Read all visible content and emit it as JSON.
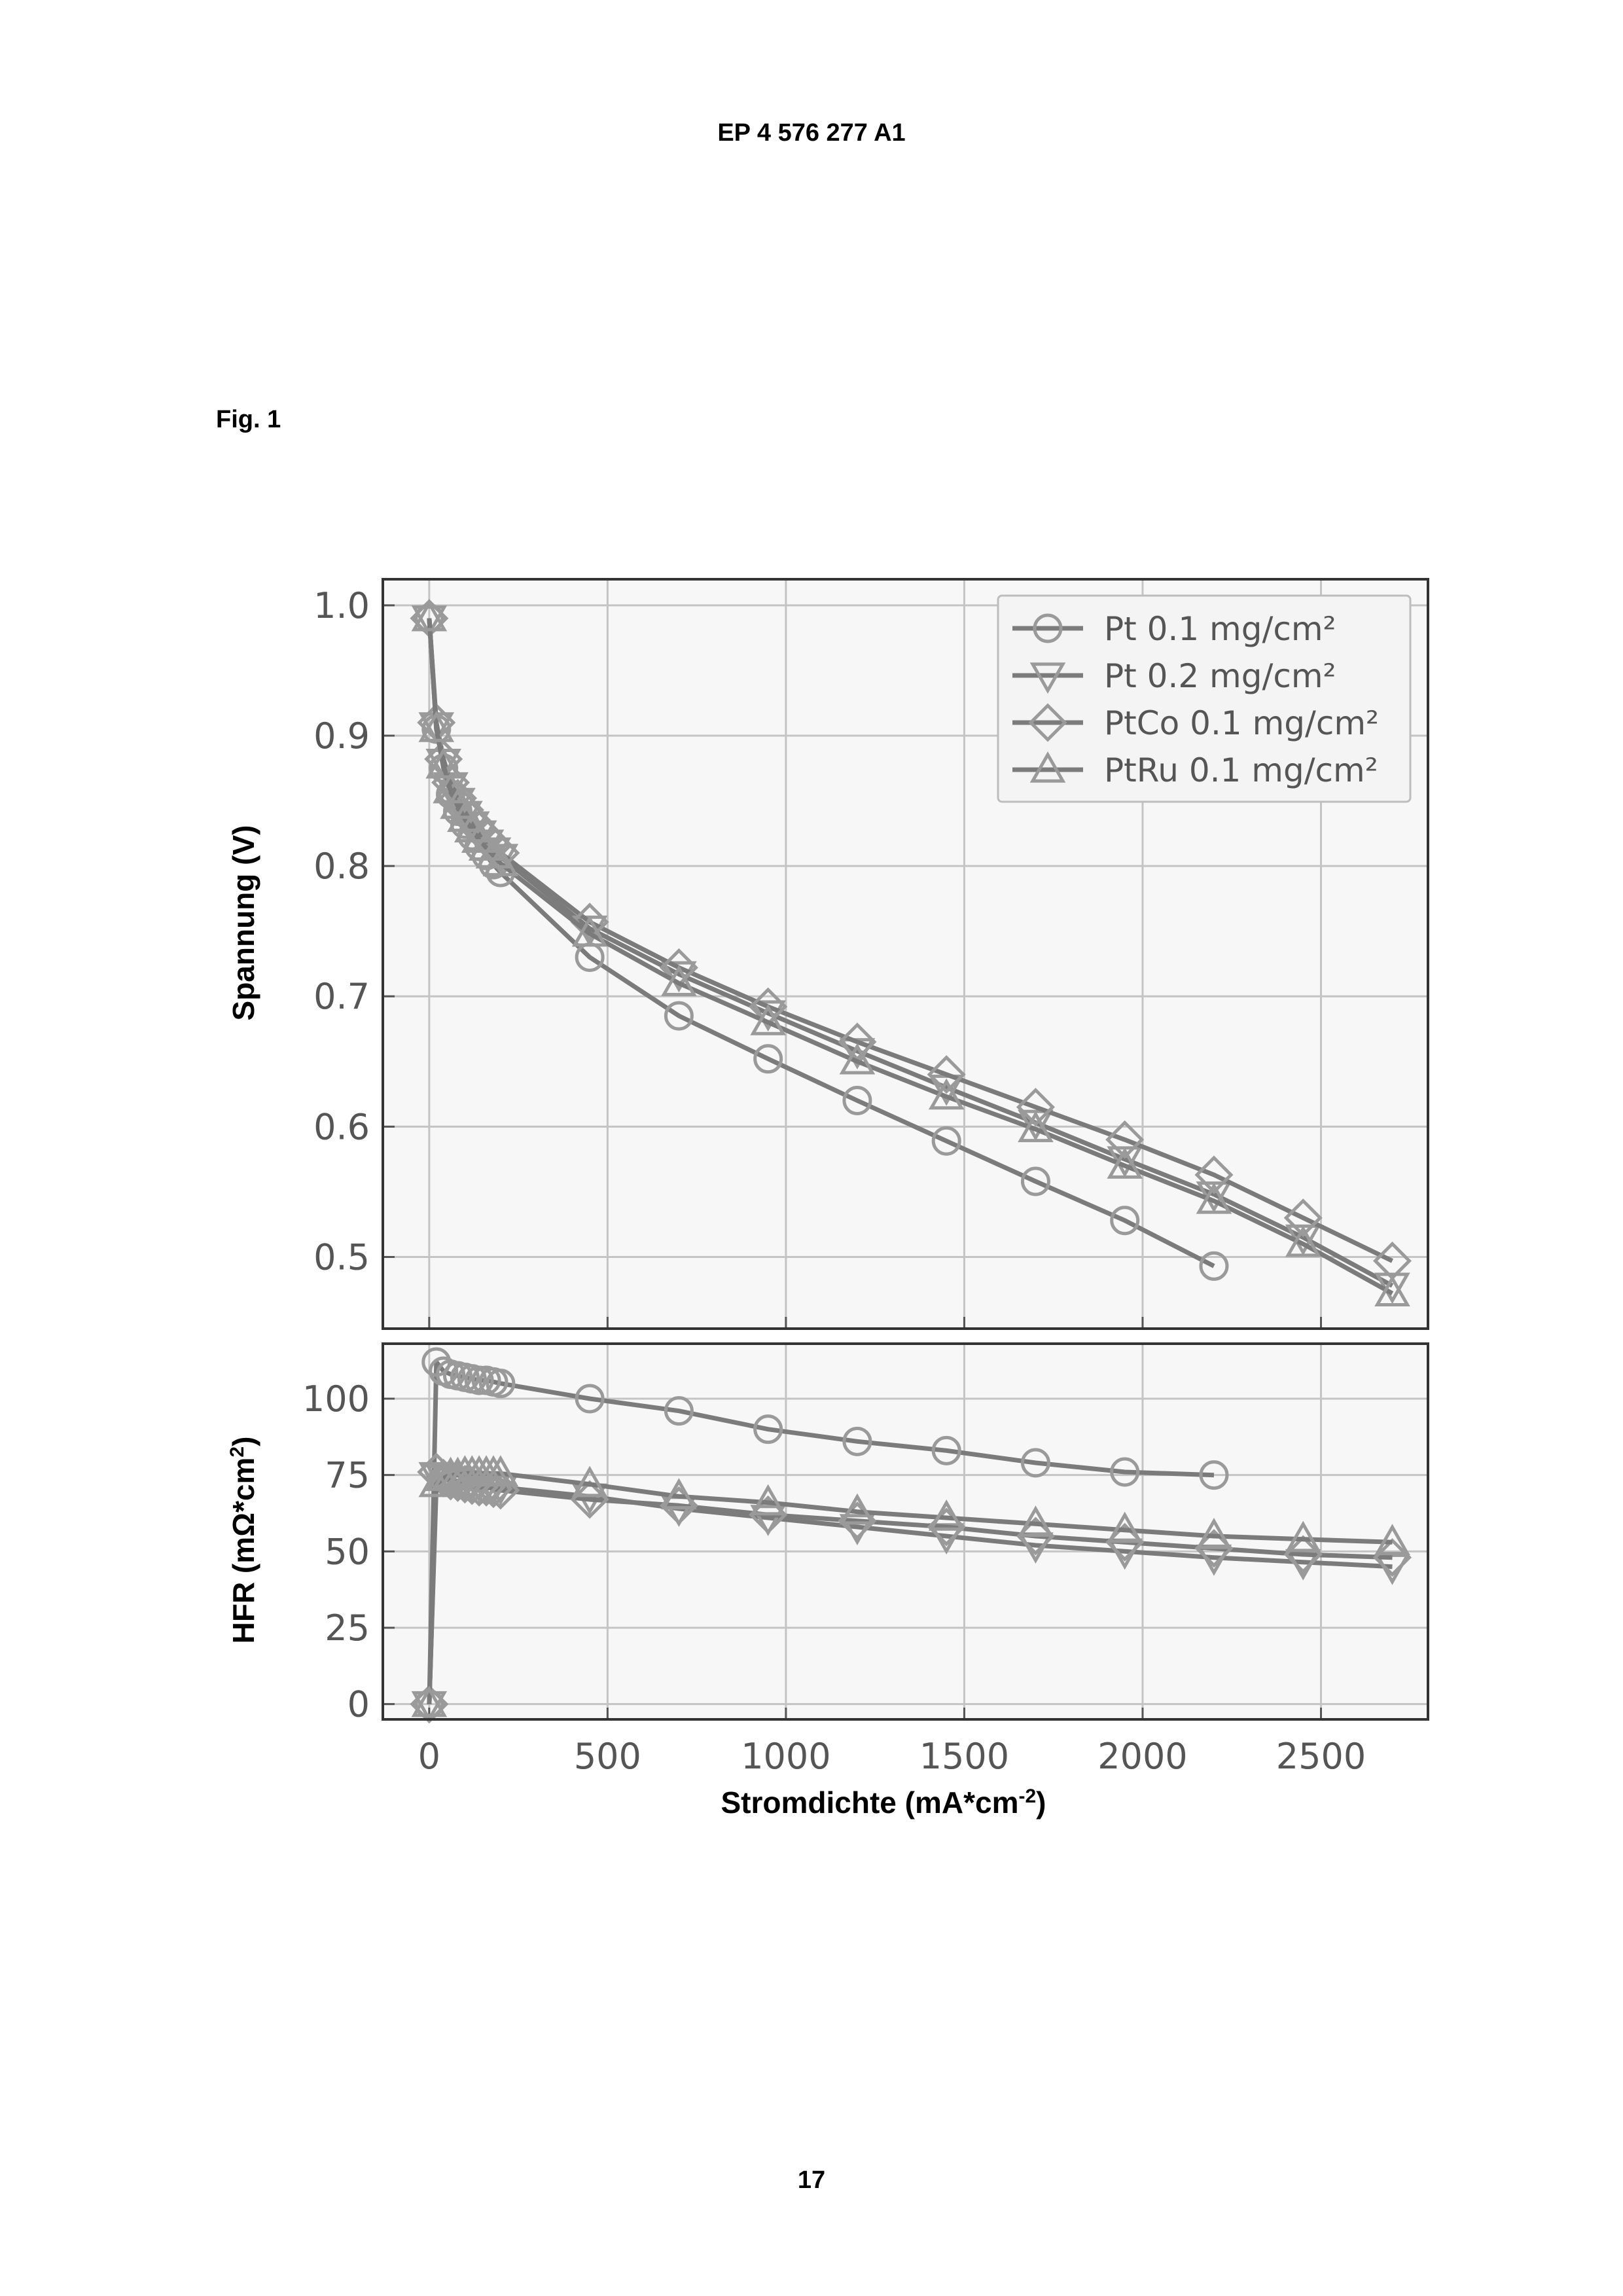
{
  "page": {
    "header": "EP 4 576 277 A1",
    "figure_label": "Fig. 1",
    "page_number": "17"
  },
  "chart_data": [
    {
      "type": "line",
      "panel": "top",
      "ylabel": "Spannung (V)",
      "xlim": [
        -130,
        2800
      ],
      "ylim": [
        0.445,
        1.02
      ],
      "xticks": [
        0,
        500,
        1000,
        1500,
        2000,
        2500
      ],
      "yticks": [
        0.5,
        0.6,
        0.7,
        0.8,
        0.9,
        1.0
      ],
      "ytick_labels": [
        "0.5",
        "0.6",
        "0.7",
        "0.8",
        "0.9",
        "1.0"
      ],
      "grid": true,
      "legend": "top-right",
      "series": [
        {
          "name": "Pt 0.1 mg/cm²",
          "marker": "circle",
          "x": [
            0,
            20,
            40,
            60,
            80,
            100,
            120,
            140,
            160,
            180,
            200,
            450,
            700,
            950,
            1200,
            1450,
            1700,
            1950,
            2200
          ],
          "y": [
            0.99,
            0.905,
            0.875,
            0.855,
            0.842,
            0.832,
            0.823,
            0.815,
            0.808,
            0.801,
            0.795,
            0.73,
            0.685,
            0.652,
            0.62,
            0.589,
            0.558,
            0.528,
            0.493
          ]
        },
        {
          "name": "Pt 0.2 mg/cm²",
          "marker": "triangle-down",
          "x": [
            0,
            20,
            40,
            60,
            80,
            100,
            120,
            140,
            160,
            180,
            200,
            450,
            700,
            950,
            1200,
            1450,
            1700,
            1950,
            2200,
            2450,
            2700
          ],
          "y": [
            0.99,
            0.908,
            0.88,
            0.862,
            0.85,
            0.84,
            0.832,
            0.825,
            0.818,
            0.812,
            0.807,
            0.752,
            0.717,
            0.687,
            0.658,
            0.63,
            0.603,
            0.575,
            0.548,
            0.515,
            0.478
          ]
        },
        {
          "name": "PtCo 0.1 mg/cm²",
          "marker": "diamond",
          "x": [
            0,
            20,
            40,
            60,
            80,
            100,
            120,
            140,
            160,
            180,
            200,
            450,
            700,
            950,
            1200,
            1450,
            1700,
            1950,
            2200,
            2450,
            2700
          ],
          "y": [
            0.99,
            0.91,
            0.882,
            0.864,
            0.852,
            0.843,
            0.835,
            0.828,
            0.822,
            0.816,
            0.81,
            0.757,
            0.722,
            0.692,
            0.665,
            0.64,
            0.615,
            0.59,
            0.563,
            0.53,
            0.497
          ]
        },
        {
          "name": "PtRu 0.1 mg/cm²",
          "marker": "triangle-up",
          "x": [
            0,
            20,
            40,
            60,
            80,
            100,
            120,
            140,
            160,
            180,
            200,
            450,
            700,
            950,
            1200,
            1450,
            1700,
            1950,
            2200,
            2450,
            2700
          ],
          "y": [
            0.99,
            0.905,
            0.877,
            0.858,
            0.846,
            0.836,
            0.828,
            0.82,
            0.814,
            0.808,
            0.802,
            0.748,
            0.71,
            0.68,
            0.65,
            0.623,
            0.598,
            0.57,
            0.543,
            0.51,
            0.472
          ]
        }
      ]
    },
    {
      "type": "line",
      "panel": "bottom",
      "xlabel": "Stromdichte (mA*cm-2)",
      "xlabel_main": "Stromdichte (mA*cm",
      "xlabel_sup": "-2",
      "xlabel_tail": ")",
      "ylabel": "HFR (mΩ*cm2)",
      "ylabel_main": "HFR (mΩ*cm",
      "ylabel_sup": "2",
      "ylabel_tail": ")",
      "xlim": [
        -130,
        2800
      ],
      "ylim": [
        -5,
        118
      ],
      "xticks": [
        0,
        500,
        1000,
        1500,
        2000,
        2500
      ],
      "xtick_labels": [
        "0",
        "500",
        "1000",
        "1500",
        "2000",
        "2500"
      ],
      "yticks": [
        0,
        25,
        50,
        75,
        100
      ],
      "ytick_labels": [
        "0",
        "25",
        "50",
        "75",
        "100"
      ],
      "grid": true,
      "series": [
        {
          "name": "Pt 0.1 mg/cm²",
          "marker": "circle",
          "x": [
            0,
            20,
            40,
            60,
            80,
            100,
            120,
            140,
            160,
            180,
            200,
            450,
            700,
            950,
            1200,
            1450,
            1700,
            1950,
            2200
          ],
          "y": [
            0,
            112,
            109,
            108,
            107.5,
            107,
            106.5,
            106,
            106,
            105.5,
            105,
            100,
            96,
            90,
            86,
            83,
            79,
            76,
            75
          ]
        },
        {
          "name": "Pt 0.2 mg/cm²",
          "marker": "triangle-down",
          "x": [
            0,
            20,
            40,
            60,
            80,
            100,
            120,
            140,
            160,
            180,
            200,
            450,
            700,
            950,
            1200,
            1450,
            1700,
            1950,
            2200,
            2450,
            2700
          ],
          "y": [
            0,
            75,
            74,
            73.5,
            73,
            72.5,
            72,
            72,
            71.5,
            71,
            71,
            68,
            64,
            61,
            58,
            55,
            52,
            50,
            48,
            46.5,
            45
          ]
        },
        {
          "name": "PtCo 0.1 mg/cm²",
          "marker": "diamond",
          "x": [
            0,
            20,
            40,
            60,
            80,
            100,
            120,
            140,
            160,
            180,
            200,
            450,
            700,
            950,
            1200,
            1450,
            1700,
            1950,
            2200,
            2450,
            2700
          ],
          "y": [
            0,
            76,
            74,
            73,
            72.5,
            72,
            71.5,
            71,
            71,
            70.5,
            70,
            67,
            65,
            62,
            60,
            58,
            55,
            53,
            51,
            49,
            48
          ]
        },
        {
          "name": "PtRu 0.1 mg/cm²",
          "marker": "triangle-up",
          "x": [
            0,
            20,
            40,
            60,
            80,
            100,
            120,
            140,
            160,
            180,
            200,
            450,
            700,
            950,
            1200,
            1450,
            1700,
            1950,
            2200,
            2450,
            2700
          ],
          "y": [
            0,
            72,
            74,
            75,
            75,
            75.5,
            75.5,
            75.5,
            75.5,
            75.5,
            75.5,
            72,
            68,
            66,
            63,
            61,
            59,
            57,
            55,
            54,
            53
          ]
        }
      ]
    }
  ]
}
